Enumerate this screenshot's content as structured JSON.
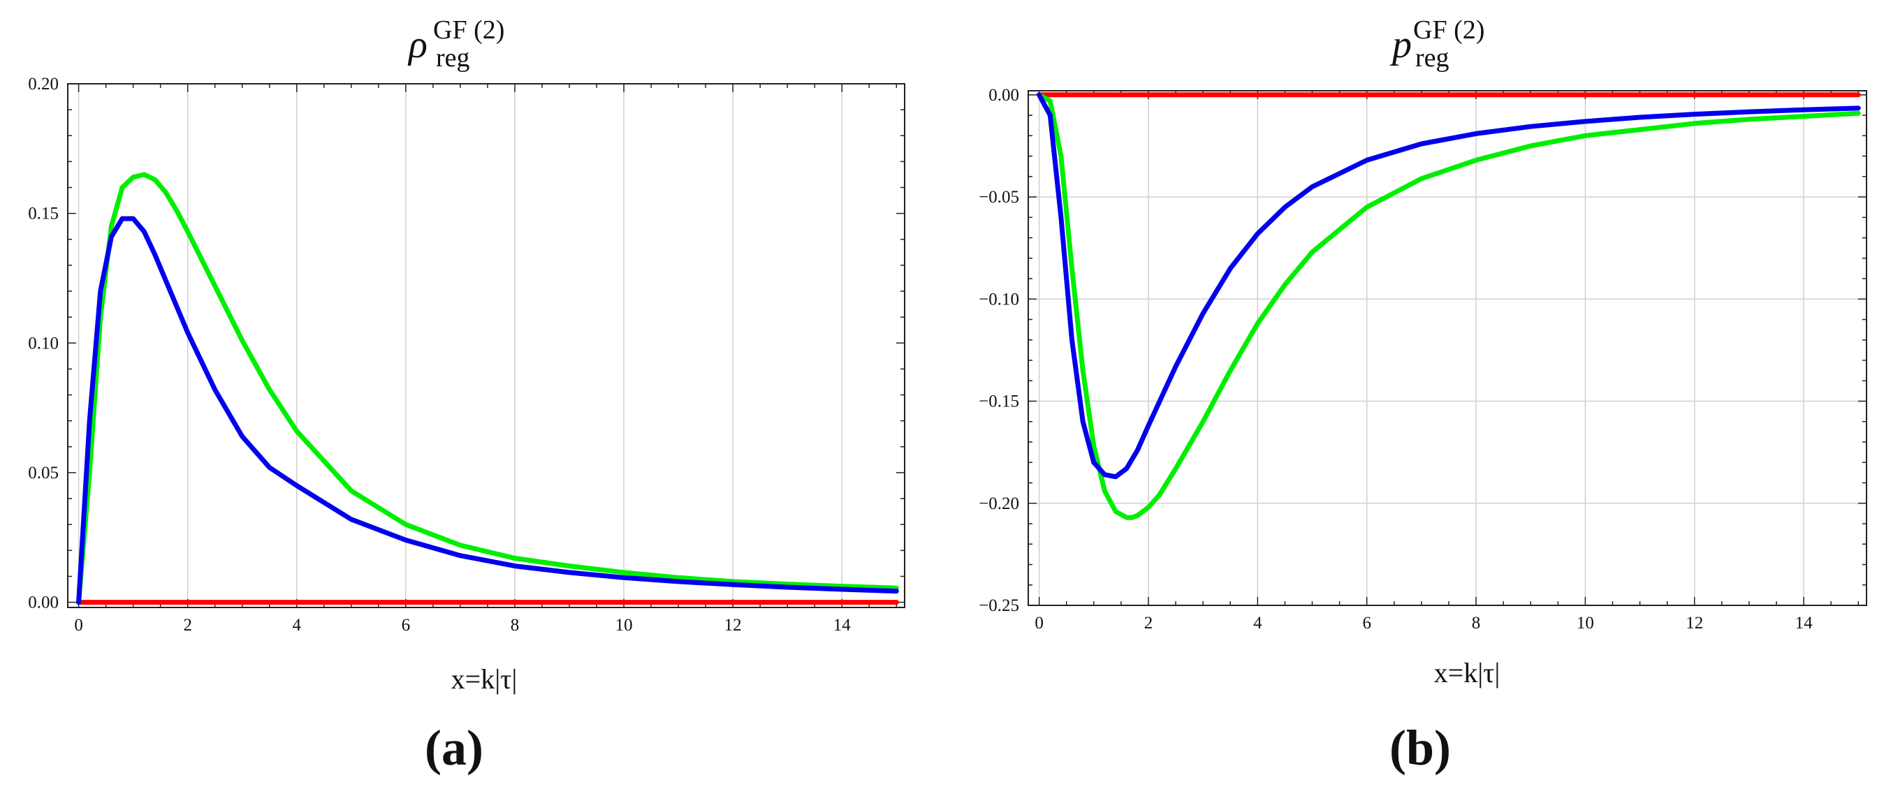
{
  "chart_data": [
    {
      "type": "line",
      "panel_label": "(a)",
      "title": {
        "symbol": "ρ",
        "superscript": "GF (2)",
        "subscript": "reg"
      },
      "xlabel": "x=k|τ|",
      "ylabel": "",
      "xlim": [
        -0.2,
        15.15
      ],
      "ylim": [
        -0.002,
        0.2
      ],
      "x_ticks": [
        0,
        2,
        4,
        6,
        8,
        10,
        12,
        14
      ],
      "x_tick_labels": [
        "0",
        "2",
        "4",
        "6",
        "8",
        "10",
        "12",
        "14"
      ],
      "y_ticks": [
        0.0,
        0.05,
        0.1,
        0.15,
        0.2
      ],
      "y_tick_labels": [
        "0.00",
        "0.05",
        "0.10",
        "0.15",
        "0.20"
      ],
      "grid": "vertical",
      "legend": "none",
      "series": [
        {
          "color": "#ff0000",
          "x": [
            0,
            15
          ],
          "y": [
            0,
            0
          ]
        },
        {
          "color": "#00ee00",
          "x": [
            0,
            0.2,
            0.4,
            0.6,
            0.8,
            1.0,
            1.2,
            1.4,
            1.6,
            1.8,
            2.0,
            2.5,
            3.0,
            3.5,
            4.0,
            5.0,
            6.0,
            7.0,
            8.0,
            9.0,
            10.0,
            11.0,
            12.0,
            13.0,
            14.0,
            15.0
          ],
          "y": [
            0,
            0.05,
            0.11,
            0.145,
            0.16,
            0.164,
            0.165,
            0.163,
            0.158,
            0.151,
            0.143,
            0.122,
            0.101,
            0.082,
            0.066,
            0.043,
            0.03,
            0.022,
            0.017,
            0.014,
            0.0115,
            0.0095,
            0.008,
            0.007,
            0.0062,
            0.0055
          ]
        },
        {
          "color": "#0000ee",
          "x": [
            0,
            0.2,
            0.4,
            0.6,
            0.8,
            1.0,
            1.2,
            1.4,
            1.6,
            1.8,
            2.0,
            2.5,
            3.0,
            3.5,
            4.0,
            5.0,
            6.0,
            7.0,
            8.0,
            9.0,
            10.0,
            11.0,
            12.0,
            13.0,
            14.0,
            15.0
          ],
          "y": [
            0,
            0.07,
            0.12,
            0.141,
            0.148,
            0.148,
            0.143,
            0.134,
            0.124,
            0.114,
            0.104,
            0.082,
            0.064,
            0.052,
            0.045,
            0.032,
            0.024,
            0.018,
            0.014,
            0.0115,
            0.0095,
            0.008,
            0.0068,
            0.0058,
            0.005,
            0.0043
          ]
        }
      ]
    },
    {
      "type": "line",
      "panel_label": "(b)",
      "title": {
        "symbol": "p",
        "superscript": "GF (2)",
        "subscript": "reg"
      },
      "xlabel": "x=k|τ|",
      "ylabel": "",
      "xlim": [
        -0.2,
        15.15
      ],
      "ylim": [
        -0.25,
        0.002
      ],
      "x_ticks": [
        0,
        2,
        4,
        6,
        8,
        10,
        12,
        14
      ],
      "x_tick_labels": [
        "0",
        "2",
        "4",
        "6",
        "8",
        "10",
        "12",
        "14"
      ],
      "y_ticks": [
        0.0,
        -0.05,
        -0.1,
        -0.15,
        -0.2,
        -0.25
      ],
      "y_tick_labels": [
        "0.00",
        "−0.05",
        "−0.10",
        "−0.15",
        "−0.20",
        "−0.25"
      ],
      "grid": "both",
      "legend": "none",
      "series": [
        {
          "color": "#ff0000",
          "x": [
            0,
            15
          ],
          "y": [
            0,
            0
          ]
        },
        {
          "color": "#00ee00",
          "x": [
            0,
            0.2,
            0.4,
            0.6,
            0.8,
            1.0,
            1.2,
            1.4,
            1.6,
            1.7,
            1.8,
            2.0,
            2.2,
            2.5,
            3.0,
            3.5,
            4.0,
            4.5,
            5.0,
            6.0,
            7.0,
            8.0,
            9.0,
            10.0,
            11.0,
            12.0,
            13.0,
            14.0,
            15.0
          ],
          "y": [
            0,
            -0.003,
            -0.03,
            -0.085,
            -0.135,
            -0.172,
            -0.194,
            -0.204,
            -0.207,
            -0.207,
            -0.206,
            -0.202,
            -0.196,
            -0.183,
            -0.16,
            -0.135,
            -0.112,
            -0.093,
            -0.077,
            -0.055,
            -0.041,
            -0.032,
            -0.025,
            -0.02,
            -0.017,
            -0.014,
            -0.012,
            -0.0105,
            -0.009
          ]
        },
        {
          "color": "#0000ee",
          "x": [
            0,
            0.2,
            0.4,
            0.6,
            0.8,
            1.0,
            1.2,
            1.4,
            1.6,
            1.8,
            2.0,
            2.5,
            3.0,
            3.5,
            4.0,
            4.5,
            5.0,
            6.0,
            7.0,
            8.0,
            9.0,
            10.0,
            11.0,
            12.0,
            13.0,
            14.0,
            15.0
          ],
          "y": [
            0,
            -0.01,
            -0.06,
            -0.12,
            -0.16,
            -0.18,
            -0.186,
            -0.187,
            -0.183,
            -0.174,
            -0.162,
            -0.133,
            -0.107,
            -0.085,
            -0.068,
            -0.055,
            -0.045,
            -0.032,
            -0.024,
            -0.019,
            -0.0155,
            -0.013,
            -0.011,
            -0.0095,
            -0.0083,
            -0.0073,
            -0.0065
          ]
        }
      ]
    }
  ]
}
